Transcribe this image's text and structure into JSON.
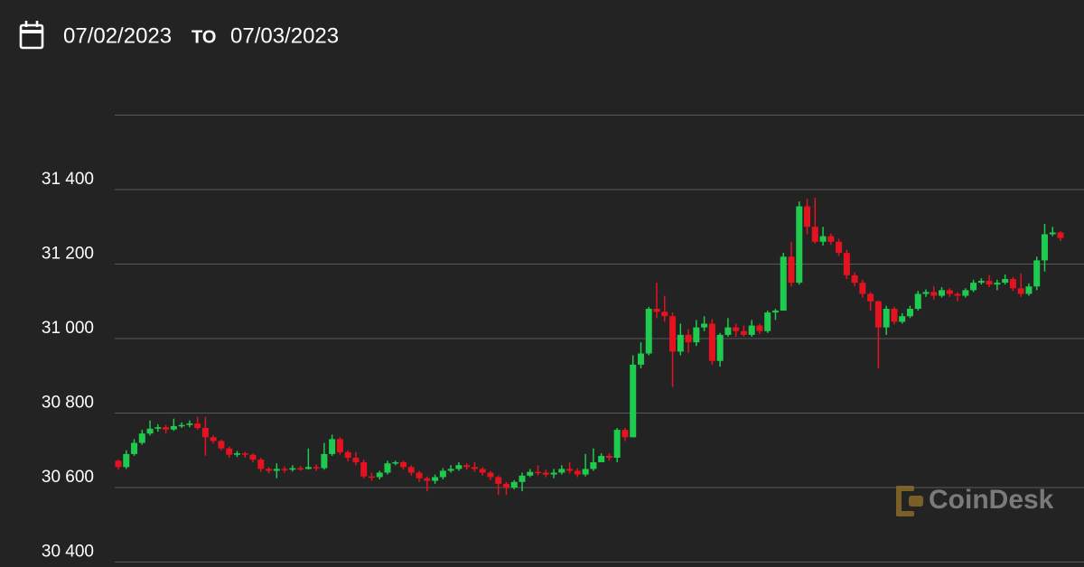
{
  "chart_data": {
    "type": "candlestick",
    "date_from": "07/02/2023",
    "range_separator": "TO",
    "date_to": "07/03/2023",
    "watermark": "CoinDesk",
    "up_color": "#1ecb4f",
    "down_color": "#e5121f",
    "grid": true,
    "ylim": [
      30400,
      31600
    ],
    "yticks": [
      {
        "value": 30400,
        "label": "30 400"
      },
      {
        "value": 30600,
        "label": "30 600"
      },
      {
        "value": 30800,
        "label": "30 800"
      },
      {
        "value": 31000,
        "label": "31 000"
      },
      {
        "value": 31200,
        "label": "31 200"
      },
      {
        "value": 31400,
        "label": "31 400"
      }
    ],
    "open": [
      30672,
      30655,
      30690,
      30720,
      30745,
      30758,
      30762,
      30756,
      30765,
      30768,
      30772,
      30760,
      30735,
      30725,
      30705,
      30688,
      30692,
      30688,
      30675,
      30650,
      30645,
      30650,
      30648,
      30652,
      30650,
      30655,
      30652,
      30690,
      30730,
      30695,
      30680,
      30668,
      30630,
      30628,
      30640,
      30665,
      30668,
      30655,
      30640,
      30625,
      30618,
      30628,
      30645,
      30650,
      30660,
      30655,
      30650,
      30640,
      30628,
      30610,
      30600,
      30615,
      30632,
      30642,
      30640,
      30635,
      30640,
      30650,
      30645,
      30635,
      30650,
      30668,
      30685,
      30680,
      30755,
      30735,
      30930,
      30960,
      31080,
      31072,
      31060,
      30965,
      31010,
      30990,
      31030,
      31040,
      30940,
      31010,
      31030,
      31020,
      31010,
      31035,
      31020,
      31070,
      31075,
      31220,
      31150,
      31355,
      31300,
      31260,
      31275,
      31260,
      31230,
      31170,
      31150,
      31120,
      31100,
      31030,
      31080,
      31045,
      31060,
      31080,
      31120,
      31125,
      31115,
      31130,
      31120,
      31115,
      31130,
      31150,
      31155,
      31145,
      31150,
      31160,
      31135,
      31120,
      31140,
      31210,
      31280,
      31285
    ],
    "high": [
      30675,
      30700,
      30730,
      30755,
      30780,
      30770,
      30768,
      30785,
      30775,
      30780,
      30790,
      30790,
      30740,
      30728,
      30710,
      30698,
      30696,
      30692,
      30680,
      30655,
      30665,
      30656,
      30660,
      30658,
      30705,
      30662,
      30720,
      30742,
      30735,
      30700,
      30695,
      30675,
      30640,
      30645,
      30672,
      30672,
      30672,
      30660,
      30645,
      30630,
      30635,
      30652,
      30660,
      30668,
      30665,
      30668,
      30655,
      30645,
      30632,
      30615,
      30620,
      30640,
      30650,
      30660,
      30648,
      30650,
      30660,
      30668,
      30652,
      30690,
      30705,
      30692,
      30692,
      30760,
      30760,
      30955,
      30990,
      31085,
      31150,
      31115,
      31070,
      31040,
      31025,
      31050,
      31060,
      31052,
      31015,
      31055,
      31040,
      31035,
      31050,
      31040,
      31075,
      31080,
      31230,
      31260,
      31368,
      31375,
      31378,
      31300,
      31282,
      31268,
      31238,
      31178,
      31158,
      31125,
      31102,
      31088,
      31085,
      31068,
      31088,
      31128,
      31132,
      31140,
      31138,
      31135,
      31125,
      31135,
      31158,
      31162,
      31170,
      31158,
      31172,
      31165,
      31175,
      31148,
      31220,
      31308,
      31300,
      31288
    ],
    "low": [
      30648,
      30650,
      30685,
      30715,
      30740,
      30750,
      30745,
      30752,
      30760,
      30762,
      30755,
      30685,
      30718,
      30700,
      30680,
      30682,
      30680,
      30668,
      30642,
      30638,
      30625,
      30640,
      30643,
      30645,
      30648,
      30645,
      30648,
      30685,
      30688,
      30670,
      30660,
      30625,
      30618,
      30622,
      30635,
      30660,
      30648,
      30632,
      30615,
      30590,
      30610,
      30622,
      30640,
      30645,
      30648,
      30642,
      30632,
      30620,
      30580,
      30580,
      30595,
      30590,
      30628,
      30632,
      30628,
      30625,
      30635,
      30638,
      30628,
      30630,
      30645,
      30675,
      30672,
      30668,
      30725,
      30735,
      30920,
      30955,
      31055,
      31045,
      30870,
      30955,
      30962,
      30980,
      31020,
      30930,
      30925,
      31005,
      31005,
      31005,
      31005,
      31012,
      31015,
      31050,
      31080,
      31140,
      31145,
      31280,
      31255,
      31250,
      31252,
      31222,
      31160,
      31140,
      31110,
      31075,
      30920,
      31010,
      31038,
      31040,
      31055,
      31075,
      31112,
      31105,
      31110,
      31112,
      31100,
      31110,
      31125,
      31145,
      31138,
      31130,
      31145,
      31128,
      31112,
      31115,
      31130,
      31180,
      31275,
      31262
    ],
    "close": [
      30655,
      30690,
      30720,
      30745,
      30758,
      30762,
      30756,
      30765,
      30768,
      30772,
      30760,
      30735,
      30725,
      30705,
      30688,
      30692,
      30688,
      30675,
      30650,
      30645,
      30650,
      30648,
      30652,
      30650,
      30655,
      30652,
      30690,
      30730,
      30695,
      30680,
      30668,
      30630,
      30628,
      30640,
      30665,
      30668,
      30655,
      30640,
      30625,
      30618,
      30628,
      30645,
      30650,
      30660,
      30655,
      30650,
      30640,
      30628,
      30610,
      30600,
      30615,
      30632,
      30642,
      30640,
      30635,
      30640,
      30650,
      30645,
      30635,
      30650,
      30668,
      30685,
      30680,
      30755,
      30735,
      30930,
      30960,
      31080,
      31072,
      31060,
      30965,
      31010,
      30990,
      31030,
      31040,
      30940,
      31010,
      31030,
      31020,
      31010,
      31035,
      31020,
      31070,
      31075,
      31220,
      31150,
      31355,
      31300,
      31260,
      31275,
      31260,
      31230,
      31170,
      31150,
      31120,
      31100,
      31030,
      31080,
      31045,
      31060,
      31080,
      31120,
      31125,
      31115,
      31130,
      31120,
      31115,
      31130,
      31150,
      31155,
      31145,
      31150,
      31160,
      31135,
      31120,
      31140,
      31210,
      31280,
      31285,
      31270
    ]
  }
}
